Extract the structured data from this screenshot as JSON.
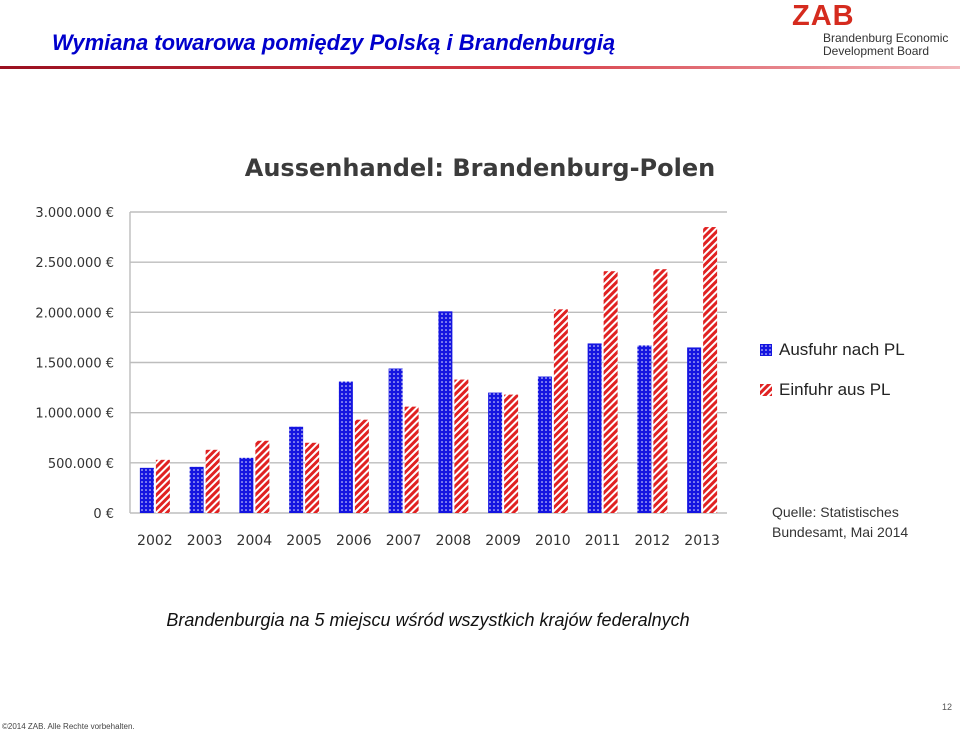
{
  "slide": {
    "title": "Wymiana towarowa pomiędzy Polską i Brandenburgią",
    "caption": "Brandenburgia na 5 miejscu wśród wszystkich krajów federalnych",
    "page_number": "12",
    "footer": "©2014 ZAB. Alle Rechte vorbehalten."
  },
  "logo": {
    "mark": "ZAB",
    "line1": "Brandenburg Economic",
    "line2": "Development Board"
  },
  "chart_data": {
    "type": "bar",
    "title": "Aussenhandel: Brandenburg-Polen",
    "categories": [
      "2002",
      "2003",
      "2004",
      "2005",
      "2006",
      "2007",
      "2008",
      "2009",
      "2010",
      "2011",
      "2012",
      "2013"
    ],
    "series": [
      {
        "name": "Ausfuhr nach PL",
        "color": "#1515e0",
        "pattern": "dots",
        "values": [
          450000,
          460000,
          550000,
          860000,
          1310000,
          1440000,
          2010000,
          1200000,
          1360000,
          1690000,
          1670000,
          1650000
        ]
      },
      {
        "name": "Einfuhr aus PL",
        "color": "#e02222",
        "pattern": "diagonal-stripes",
        "values": [
          530000,
          630000,
          720000,
          700000,
          930000,
          1060000,
          1330000,
          1180000,
          2030000,
          2410000,
          2430000,
          2850000
        ]
      }
    ],
    "yticks": [
      "0 €",
      "500.000 €",
      "1.000.000 €",
      "1.500.000 €",
      "2.000.000 €",
      "2.500.000 €",
      "3.000.000 €"
    ],
    "ytick_values": [
      0,
      500000,
      1000000,
      1500000,
      2000000,
      2500000,
      3000000
    ],
    "ylim": [
      0,
      3000000
    ],
    "grid": true,
    "legend_position": "right",
    "source_line1": "Quelle: Statistisches",
    "source_line2": "Bundesamt, Mai 2014"
  }
}
